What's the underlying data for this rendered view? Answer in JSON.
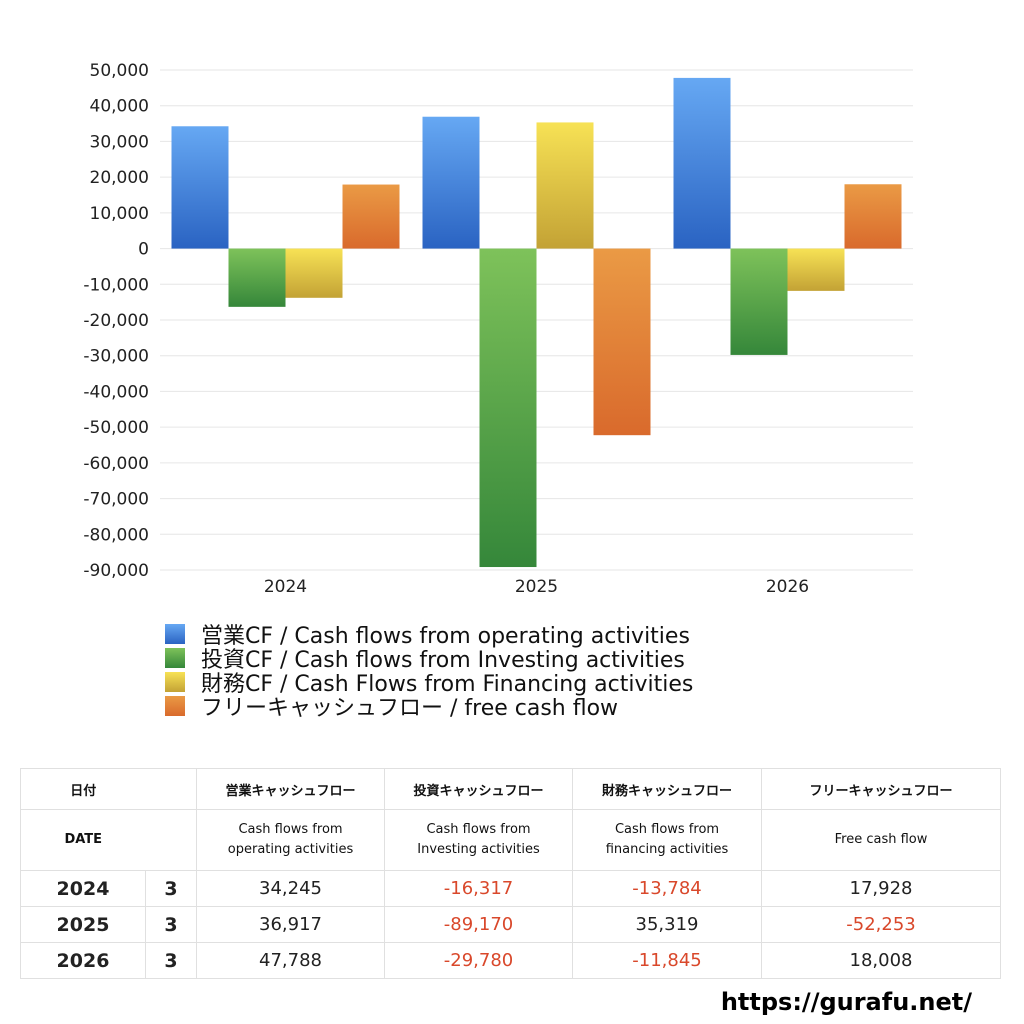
{
  "chart_data": {
    "type": "bar",
    "categories": [
      "2024",
      "2025",
      "2026"
    ],
    "ylim": [
      -90000,
      50000
    ],
    "yticks": [
      50000,
      40000,
      30000,
      20000,
      10000,
      0,
      -10000,
      -20000,
      -30000,
      -40000,
      -50000,
      -60000,
      -70000,
      -80000,
      -90000
    ],
    "ytick_labels": [
      "50,000",
      "40,000",
      "30,000",
      "20,000",
      "10,000",
      "0",
      "-10,000",
      "-20,000",
      "-30,000",
      "-40,000",
      "-50,000",
      "-60,000",
      "-70,000",
      "-80,000",
      "-90,000"
    ],
    "grid": true,
    "legend_position": "bottom",
    "series": [
      {
        "name": "営業CF / Cash flows from operating activities",
        "values": [
          34245,
          36917,
          47788
        ],
        "color_top": "#66a8f3",
        "color_bottom": "#2a63c2"
      },
      {
        "name": "投資CF / Cash flows from Investing activities",
        "values": [
          -16317,
          -89170,
          -29780
        ],
        "color_top": "#7ec25a",
        "color_bottom": "#35873a"
      },
      {
        "name": "財務CF / Cash Flows from Financing activities",
        "values": [
          -13784,
          35319,
          -11845
        ],
        "color_top": "#f7e255",
        "color_bottom": "#c3a235"
      },
      {
        "name": "フリーキャッシュフロー / free cash flow",
        "values": [
          17928,
          -52253,
          18008
        ],
        "color_top": "#ea9a45",
        "color_bottom": "#d96a2c"
      }
    ]
  },
  "table": {
    "header_jp": [
      "日付",
      "営業キャッシュフロー",
      "投資キャッシュフロー",
      "財務キャッシュフロー",
      "フリーキャッシュフロー"
    ],
    "header_en": {
      "date": "DATE",
      "operating_1": "Cash flows from",
      "operating_2": "operating activities",
      "investing_1": "Cash flows from",
      "investing_2": "Investing activities",
      "financing_1": "Cash flows from",
      "financing_2": "financing activities",
      "free": "Free cash flow"
    },
    "rows": [
      {
        "year": "2024",
        "month": "3",
        "operating": "34,245",
        "investing": "-16,317",
        "financing": "-13,784",
        "free": "17,928"
      },
      {
        "year": "2025",
        "month": "3",
        "operating": "36,917",
        "investing": "-89,170",
        "financing": "35,319",
        "free": "-52,253"
      },
      {
        "year": "2026",
        "month": "3",
        "operating": "47,788",
        "investing": "-29,780",
        "financing": "-11,845",
        "free": "18,008"
      }
    ],
    "negative_color": "#d9482b"
  },
  "footer": {
    "url": "https://gurafu.net/"
  }
}
